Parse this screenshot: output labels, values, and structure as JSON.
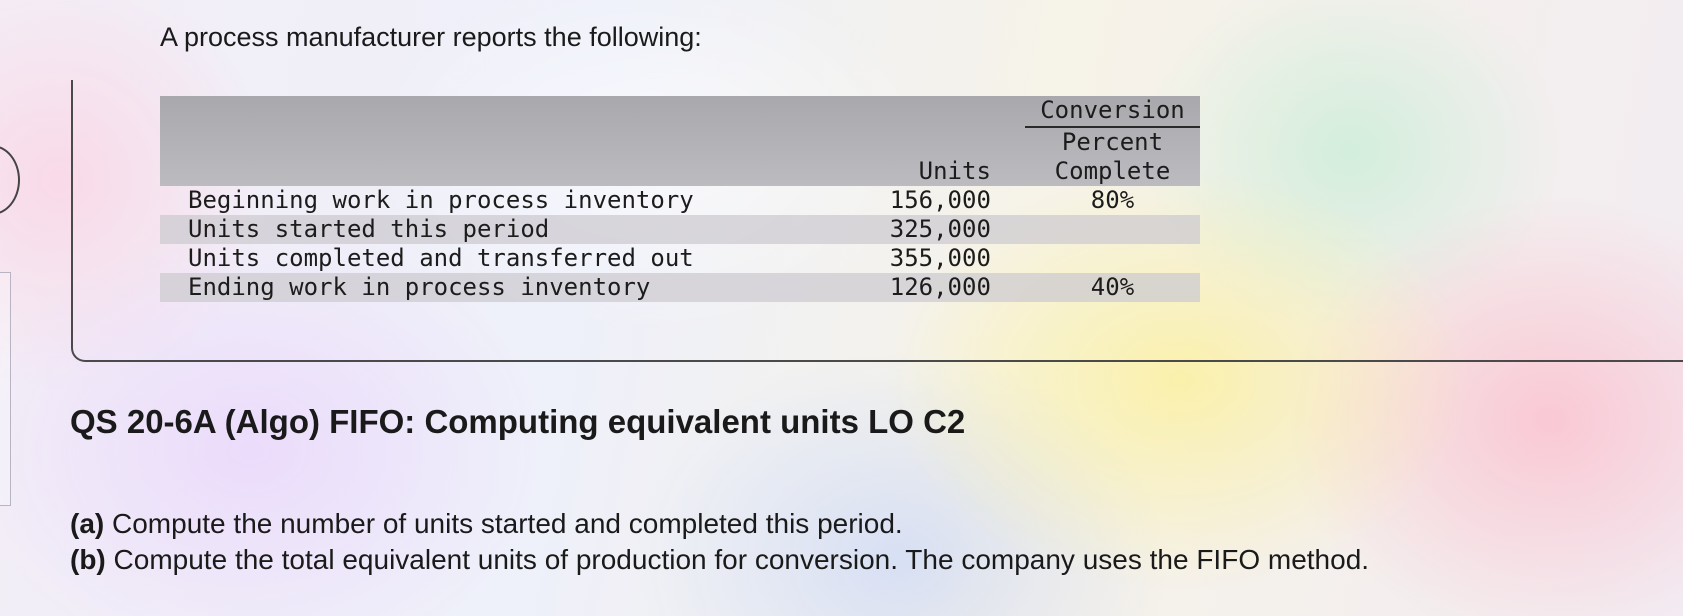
{
  "intro_text": "A process manufacturer reports the following:",
  "table": {
    "headers": {
      "units": "Units",
      "conversion_line1": "Conversion",
      "conversion_line2": "Percent",
      "conversion_line3": "Complete"
    },
    "rows": [
      {
        "label": "Beginning work in process inventory",
        "units": "156,000",
        "conversion": "80%"
      },
      {
        "label": "Units started this period",
        "units": "325,000",
        "conversion": ""
      },
      {
        "label": "Units completed and transferred out",
        "units": "355,000",
        "conversion": ""
      },
      {
        "label": "Ending work in process inventory",
        "units": "126,000",
        "conversion": "40%"
      }
    ]
  },
  "question": {
    "title": "QS 20-6A (Algo) FIFO: Computing equivalent units LO C2",
    "parts": [
      {
        "letter": "(a)",
        "text": "Compute the number of units started and completed this period."
      },
      {
        "letter": "(b)",
        "text": "Compute the total equivalent units of production for conversion. The company uses the FIFO method."
      }
    ]
  }
}
